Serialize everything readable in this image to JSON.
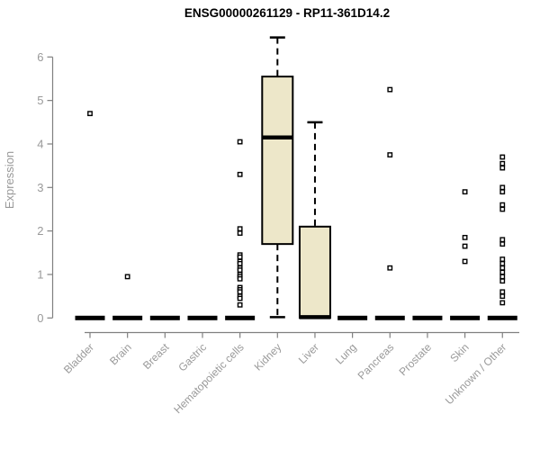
{
  "chart_data": {
    "type": "boxplot",
    "title": "ENSG00000261129 - RP11-361D14.2",
    "ylabel": "Expression",
    "xlabel": "",
    "ylim": [
      0,
      6.5
    ],
    "yticks": [
      0,
      1,
      2,
      3,
      4,
      5,
      6
    ],
    "grid": false,
    "legend": "none",
    "categories": [
      "Bladder",
      "Brain",
      "Breast",
      "Gastric",
      "Hematopoietic cells",
      "Kidney",
      "Liver",
      "Lung",
      "Pancreas",
      "Prostate",
      "Skin",
      "Unknown / Other"
    ],
    "boxes": [
      {
        "category": "Bladder",
        "q1": 0,
        "median": 0,
        "q3": 0,
        "whisker_low": 0,
        "whisker_high": 0,
        "outliers": [
          4.7
        ]
      },
      {
        "category": "Brain",
        "q1": 0,
        "median": 0,
        "q3": 0,
        "whisker_low": 0,
        "whisker_high": 0,
        "outliers": [
          0.95
        ]
      },
      {
        "category": "Breast",
        "q1": 0,
        "median": 0,
        "q3": 0,
        "whisker_low": 0,
        "whisker_high": 0,
        "outliers": []
      },
      {
        "category": "Gastric",
        "q1": 0,
        "median": 0,
        "q3": 0,
        "whisker_low": 0,
        "whisker_high": 0,
        "outliers": []
      },
      {
        "category": "Hematopoietic cells",
        "q1": 0,
        "median": 0,
        "q3": 0,
        "whisker_low": 0,
        "whisker_high": 0,
        "outliers": [
          4.05,
          3.3,
          2.05,
          1.95,
          1.45,
          1.4,
          1.3,
          1.25,
          1.15,
          1.1,
          1.0,
          0.95,
          0.9,
          0.7,
          0.65,
          0.6,
          0.5,
          0.45,
          0.3
        ]
      },
      {
        "category": "Kidney",
        "q1": 1.7,
        "median": 4.15,
        "q3": 5.55,
        "whisker_low": 0.02,
        "whisker_high": 6.45,
        "outliers": []
      },
      {
        "category": "Liver",
        "q1": 0,
        "median": 0.02,
        "q3": 2.1,
        "whisker_low": 0,
        "whisker_high": 4.5,
        "outliers": []
      },
      {
        "category": "Lung",
        "q1": 0,
        "median": 0,
        "q3": 0,
        "whisker_low": 0,
        "whisker_high": 0,
        "outliers": []
      },
      {
        "category": "Pancreas",
        "q1": 0,
        "median": 0,
        "q3": 0,
        "whisker_low": 0,
        "whisker_high": 0,
        "outliers": [
          5.25,
          3.75,
          1.15
        ]
      },
      {
        "category": "Prostate",
        "q1": 0,
        "median": 0,
        "q3": 0,
        "whisker_low": 0,
        "whisker_high": 0,
        "outliers": []
      },
      {
        "category": "Skin",
        "q1": 0,
        "median": 0,
        "q3": 0,
        "whisker_low": 0,
        "whisker_high": 0,
        "outliers": [
          2.9,
          1.85,
          1.65,
          1.3
        ]
      },
      {
        "category": "Unknown / Other",
        "q1": 0,
        "median": 0,
        "q3": 0,
        "whisker_low": 0,
        "whisker_high": 0,
        "outliers": [
          3.7,
          3.55,
          3.45,
          3.0,
          2.9,
          2.6,
          2.5,
          1.8,
          1.7,
          1.35,
          1.25,
          1.15,
          1.05,
          0.95,
          0.85,
          0.6,
          0.5,
          0.35
        ]
      }
    ],
    "colors": {
      "box_fill": "#ede7c9",
      "box_border": "#000000",
      "median": "#000000",
      "whisker": "#000000",
      "outlier_fill": "#ffffff",
      "axis": "#808080",
      "label": "#999999",
      "title": "#000000",
      "background": "#ffffff"
    }
  }
}
